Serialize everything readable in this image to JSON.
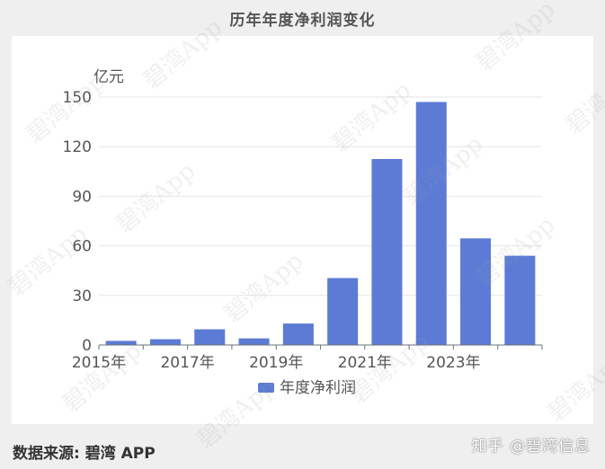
{
  "header": {
    "title": "历年年度净利润变化"
  },
  "footer": {
    "source": "数据来源: 碧湾 APP",
    "credit": "知乎 @碧湾信息"
  },
  "watermark_text": "碧湾App",
  "chart_data": {
    "type": "bar",
    "title": "历年年度净利润变化",
    "ylabel": "亿元",
    "xlabel": "",
    "ylim": [
      0,
      150
    ],
    "yticks": [
      0,
      30,
      60,
      90,
      120,
      150
    ],
    "categories": [
      "2015年",
      "2016年",
      "2017年",
      "2018年",
      "2019年",
      "2020年",
      "2021年",
      "2022年",
      "2023年",
      "2024年"
    ],
    "xtick_labels": [
      "2015年",
      "",
      "2017年",
      "",
      "2019年",
      "",
      "2021年",
      "",
      "2023年",
      ""
    ],
    "series": [
      {
        "name": "年度净利润",
        "color": "#5b7bd5",
        "values": [
          2.5,
          3.5,
          9.5,
          4,
          13,
          40.5,
          112.5,
          147,
          64.5,
          54
        ]
      }
    ],
    "grid": true,
    "legend_position": "bottom"
  }
}
